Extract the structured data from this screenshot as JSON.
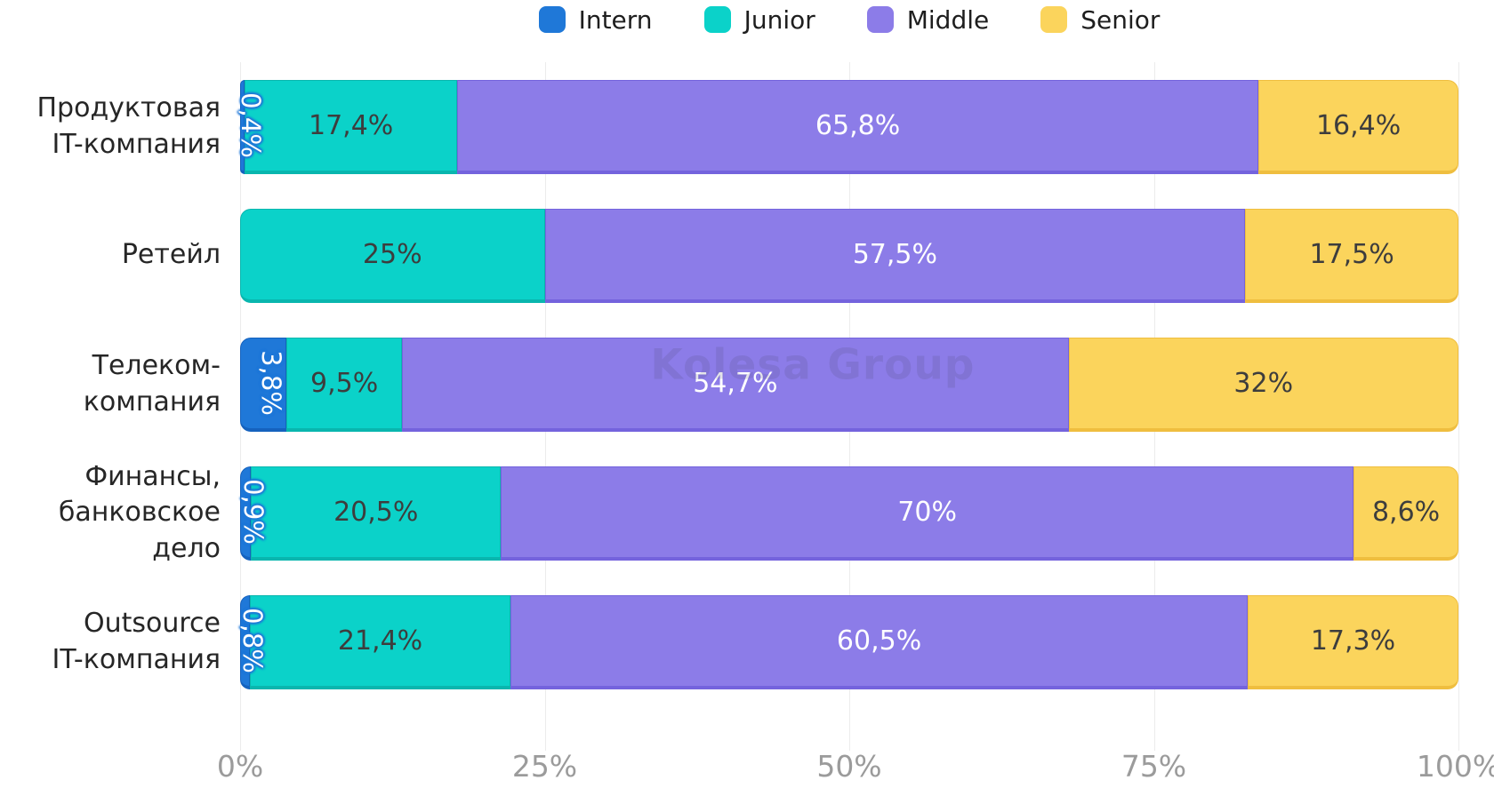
{
  "legend": {
    "items": [
      {
        "label": "Intern",
        "color_key": "intern"
      },
      {
        "label": "Junior",
        "color_key": "junior"
      },
      {
        "label": "Middle",
        "color_key": "middle"
      },
      {
        "label": "Senior",
        "color_key": "senior"
      }
    ]
  },
  "watermark": {
    "text": "Kolesa Group"
  },
  "colors": {
    "intern": "#1F78D8",
    "intern_dark": "#1562BE",
    "junior": "#0BD2C9",
    "junior_dark": "#09B6AE",
    "middle": "#8C7CE8",
    "middle_dark": "#7463DD",
    "senior": "#FBD45C",
    "senior_dark": "#EFBE3F",
    "label_on_dark": "#FFFFFF",
    "label_on_light": "#3D3D3D",
    "axis_tick": "#9B9B9B",
    "gridline": "#ECECEC"
  },
  "x_axis": {
    "ticks": [
      "0%",
      "25%",
      "50%",
      "75%",
      "100%"
    ],
    "positions": [
      0,
      25,
      50,
      75,
      100
    ]
  },
  "chart_data": {
    "type": "bar",
    "stacked": true,
    "orientation": "horizontal",
    "title": "",
    "xlabel": "",
    "ylabel": "",
    "xlim": [
      0,
      100
    ],
    "grid": true,
    "legend_position": "top",
    "series_names": [
      "Intern",
      "Junior",
      "Middle",
      "Senior"
    ],
    "categories": [
      "Продуктовая IT-компания",
      "Ретейл",
      "Телеком-компания",
      "Финансы, банковское дело",
      "Outsource IT-компания"
    ],
    "rows": [
      {
        "category_lines": [
          "Продуктовая",
          "IT-компания"
        ],
        "segments": [
          {
            "series": "Intern",
            "value": 0.4,
            "label": "0,4%"
          },
          {
            "series": "Junior",
            "value": 17.4,
            "label": "17,4%"
          },
          {
            "series": "Middle",
            "value": 65.8,
            "label": "65,8%"
          },
          {
            "series": "Senior",
            "value": 16.4,
            "label": "16,4%"
          }
        ]
      },
      {
        "category_lines": [
          "Ретейл"
        ],
        "segments": [
          {
            "series": "Intern",
            "value": 0,
            "label": ""
          },
          {
            "series": "Junior",
            "value": 25,
            "label": "25%"
          },
          {
            "series": "Middle",
            "value": 57.5,
            "label": "57,5%"
          },
          {
            "series": "Senior",
            "value": 17.5,
            "label": "17,5%"
          }
        ]
      },
      {
        "category_lines": [
          "Телеком-",
          "компания"
        ],
        "segments": [
          {
            "series": "Intern",
            "value": 3.8,
            "label": "3,8%"
          },
          {
            "series": "Junior",
            "value": 9.5,
            "label": "9,5%"
          },
          {
            "series": "Middle",
            "value": 54.7,
            "label": "54,7%"
          },
          {
            "series": "Senior",
            "value": 32,
            "label": "32%"
          }
        ]
      },
      {
        "category_lines": [
          "Финансы,",
          "банковское дело"
        ],
        "segments": [
          {
            "series": "Intern",
            "value": 0.9,
            "label": "0,9%"
          },
          {
            "series": "Junior",
            "value": 20.5,
            "label": "20,5%"
          },
          {
            "series": "Middle",
            "value": 70,
            "label": "70%"
          },
          {
            "series": "Senior",
            "value": 8.6,
            "label": "8,6%"
          }
        ]
      },
      {
        "category_lines": [
          "Outsource",
          "IT-компания"
        ],
        "segments": [
          {
            "series": "Intern",
            "value": 0.8,
            "label": "0,8%"
          },
          {
            "series": "Junior",
            "value": 21.4,
            "label": "21,4%"
          },
          {
            "series": "Middle",
            "value": 60.5,
            "label": "60,5%"
          },
          {
            "series": "Senior",
            "value": 17.3,
            "label": "17,3%"
          }
        ]
      }
    ]
  }
}
